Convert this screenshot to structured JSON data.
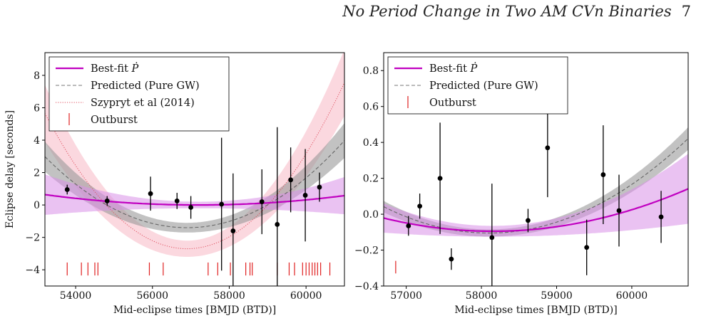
{
  "header": {
    "running_title": "No Period Change in Two AM CVn Binaries",
    "page_number": "7"
  },
  "chart_data": [
    {
      "type": "scatter",
      "title": "",
      "xlabel": "Mid-eclipse times [BMJD (BTD)]",
      "ylabel": "Eclipse delay [seconds]",
      "xlim": [
        53200,
        61000
      ],
      "ylim": [
        -5,
        9.4
      ],
      "xticks": [
        54000,
        56000,
        58000,
        60000
      ],
      "yticks": [
        -4,
        -2,
        0,
        2,
        4,
        6,
        8
      ],
      "tick_labels_x": [
        "54000",
        "56000",
        "58000",
        "60000"
      ],
      "tick_labels_y": [
        "−4",
        "−2",
        "0",
        "2",
        "4",
        "6",
        "8"
      ],
      "grid": false,
      "legend_position": "top-left",
      "legend": [
        {
          "label": "Best-fit",
          "math": "Ṗ",
          "style": "solid",
          "color": "#c000c0"
        },
        {
          "label": "Predicted (Pure GW)",
          "style": "dashed",
          "color": "#777777"
        },
        {
          "label": "Szypryt et al (2014)",
          "style": "dotted",
          "color": "#e05060"
        },
        {
          "label": "Outburst",
          "style": "tick",
          "color": "#e02020"
        }
      ],
      "points": {
        "x": [
          53780,
          54820,
          55950,
          56640,
          57000,
          57800,
          58100,
          58850,
          59250,
          59600,
          59980,
          60350
        ],
        "y": [
          0.95,
          0.25,
          0.7,
          0.25,
          -0.15,
          0.05,
          -1.6,
          0.2,
          -1.2,
          1.55,
          0.6,
          1.1
        ],
        "err": [
          0.3,
          0.3,
          1.05,
          0.5,
          0.7,
          4.1,
          3.55,
          2.0,
          6.0,
          2.0,
          2.85,
          0.9
        ]
      },
      "curves": {
        "bestfit": {
          "x0": 57200,
          "a": 0.0,
          "b": 4e-08,
          "band": [
            0.2,
            0.0,
            1.0
          ]
        },
        "predicted": {
          "x0": 56900,
          "a": -1.4,
          "b": 3.2e-07,
          "band": [
            0.3,
            0.0,
            0.7
          ]
        },
        "szypryt": {
          "x0": 56900,
          "a": -2.7,
          "b": 6.1e-07,
          "band": [
            0.5,
            0.0,
            1.4
          ]
        }
      },
      "outbursts": {
        "y_center": -3.95,
        "half_height": 0.4,
        "x": [
          53780,
          54150,
          54320,
          54500,
          54580,
          55920,
          56280,
          57450,
          57700,
          58030,
          58430,
          58540,
          58600,
          59250,
          59560,
          59700,
          59910,
          60000,
          60080,
          60160,
          60230,
          60300,
          60380,
          60620
        ]
      }
    },
    {
      "type": "scatter",
      "title": "",
      "xlabel": "Mid-eclipse times [BMJD (BTD)]",
      "ylabel": "",
      "xlim": [
        56700,
        60750
      ],
      "ylim": [
        -0.4,
        0.9
      ],
      "xticks": [
        57000,
        58000,
        59000,
        60000
      ],
      "yticks": [
        -0.4,
        -0.2,
        0.0,
        0.2,
        0.4,
        0.6,
        0.8
      ],
      "tick_labels_x": [
        "57000",
        "58000",
        "59000",
        "60000"
      ],
      "tick_labels_y": [
        "−0.4",
        "−0.2",
        "0.0",
        "0.2",
        "0.4",
        "0.6",
        "0.8"
      ],
      "grid": false,
      "legend_position": "top-left",
      "legend": [
        {
          "label": "Best-fit",
          "math": "Ṗ",
          "style": "solid",
          "color": "#c000c0"
        },
        {
          "label": "Predicted (Pure GW)",
          "style": "dashed",
          "color": "#777777"
        },
        {
          "label": "Outburst",
          "style": "tick",
          "color": "#e02020"
        }
      ],
      "points": {
        "x": [
          57030,
          57180,
          57450,
          57600,
          58140,
          58620,
          58880,
          59400,
          59620,
          59830,
          60390
        ],
        "y": [
          -0.065,
          0.045,
          0.2,
          -0.25,
          -0.13,
          -0.035,
          0.37,
          -0.185,
          0.22,
          0.02,
          -0.015
        ],
        "err": [
          0.055,
          0.07,
          0.31,
          0.06,
          0.3,
          0.065,
          0.275,
          0.155,
          0.275,
          0.2,
          0.145
        ]
      },
      "curves": {
        "bestfit": {
          "x0": 58150,
          "a": -0.095,
          "b": 3.5e-08,
          "band": [
            0.03,
            0.0,
            0.1
          ]
        },
        "predicted": {
          "x0": 58100,
          "a": -0.105,
          "b": 7.5e-08,
          "band": [
            0.02,
            0.0,
            0.025
          ]
        }
      },
      "outbursts": {
        "y_center": -0.295,
        "half_height": 0.035,
        "x": [
          56860
        ]
      }
    }
  ]
}
